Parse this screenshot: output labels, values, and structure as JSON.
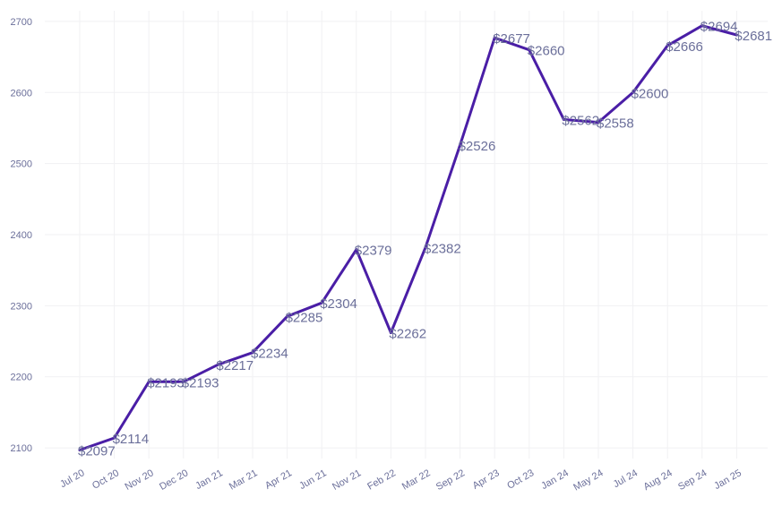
{
  "chart_data": {
    "type": "line",
    "title": "",
    "xlabel": "",
    "ylabel": "",
    "ylim": [
      2085,
      2715
    ],
    "yticks": [
      2100,
      2200,
      2300,
      2400,
      2500,
      2600,
      2700
    ],
    "grid": true,
    "line_color": "#4a1ea6",
    "text_color": "#6b6f9a",
    "categories": [
      "Jul 20",
      "Oct 20",
      "Nov 20",
      "Dec 20",
      "Jan 21",
      "Mar 21",
      "Apr 21",
      "Jun 21",
      "Nov 21",
      "Feb 22",
      "Mar 22",
      "Sep 22",
      "Apr 23",
      "Oct 23",
      "Jan 24",
      "May 24",
      "Jul 24",
      "Aug 24",
      "Sep 24",
      "Jan 25"
    ],
    "values": [
      2097,
      2114,
      2193,
      2193,
      2217,
      2234,
      2285,
      2304,
      2379,
      2262,
      2382,
      2526,
      2677,
      2660,
      2562,
      2558,
      2600,
      2666,
      2694,
      2681
    ],
    "data_labels": [
      "$2097",
      "$2114",
      "$2193",
      "$2193",
      "$2217",
      "$2234",
      "$2285",
      "$2304",
      "$2379",
      "$2262",
      "$2382",
      "$2526",
      "$2677",
      "$2660",
      "$2562",
      "$2558",
      "$2600",
      "$2666",
      "$2694",
      "$2681"
    ]
  }
}
